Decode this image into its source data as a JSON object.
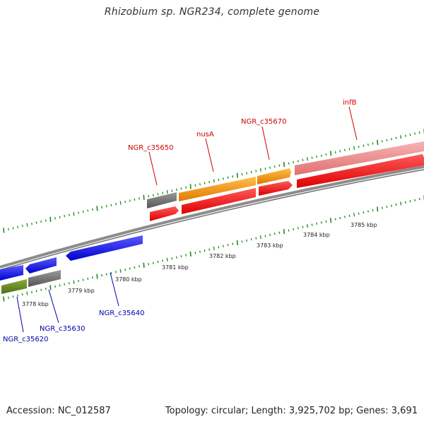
{
  "title": "Rhizobium sp. NGR234, complete genome",
  "accession": "Accession: NC_012587",
  "stats": "Topology: circular; Length: 3,925,702 bp; Genes: 3,691",
  "colors": {
    "backbone": "#8c8c8c",
    "tick": "#1e8a1e",
    "label_top": "#cc0000",
    "label_bottom": "#0000aa",
    "kbp_text": "#222222"
  },
  "kbp_ticks": [
    "3778 kbp",
    "3779 kbp",
    "3780 kbp",
    "3781 kbp",
    "3782 kbp",
    "3783 kbp",
    "3784 kbp",
    "3785 kbp"
  ],
  "gene_labels_top": [
    "NGR_c35650",
    "nusA",
    "NGR_c35670",
    "infB"
  ],
  "gene_labels_bottom": [
    "NGR_c35620",
    "NGR_c35630",
    "NGR_c35640"
  ]
}
